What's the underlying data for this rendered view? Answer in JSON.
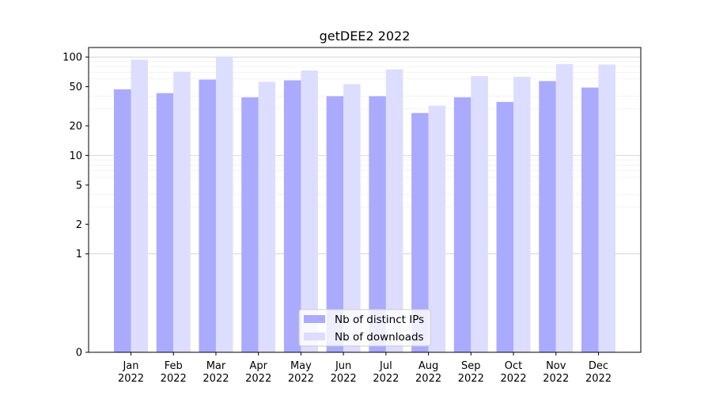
{
  "chart_data": {
    "type": "bar",
    "title": "getDEE2 2022",
    "xlabel": "",
    "ylabel": "",
    "yscale": "symlog",
    "ylim": [
      0,
      125
    ],
    "yticks": [
      0,
      1,
      2,
      5,
      10,
      20,
      50,
      100
    ],
    "ytick_labels": [
      "0",
      "1",
      "2",
      "5",
      "10",
      "20",
      "50",
      "100"
    ],
    "categories": [
      "Jan\n2022",
      "Feb\n2022",
      "Mar\n2022",
      "Apr\n2022",
      "May\n2022",
      "Jun\n2022",
      "Jul\n2022",
      "Aug\n2022",
      "Sep\n2022",
      "Oct\n2022",
      "Nov\n2022",
      "Dec\n2022"
    ],
    "series": [
      {
        "name": "Nb of distinct IPs",
        "color": "#aaaaff",
        "values": [
          47,
          43,
          59,
          39,
          58,
          40,
          40,
          27,
          39,
          35,
          57,
          49
        ]
      },
      {
        "name": "Nb of downloads",
        "color": "#ddddff",
        "values": [
          94,
          71,
          100,
          56,
          73,
          53,
          75,
          32,
          64,
          63,
          85,
          84
        ]
      }
    ],
    "grid": true,
    "legend_position": "lower center"
  }
}
